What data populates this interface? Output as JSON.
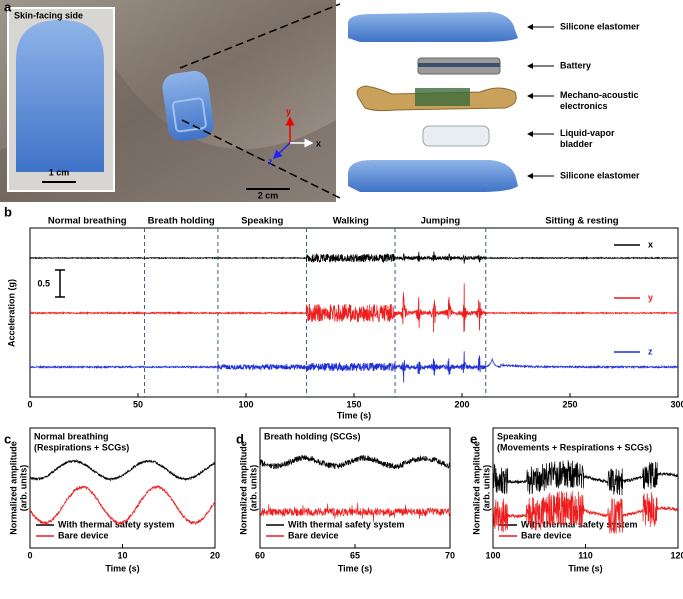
{
  "panel_a": {
    "label": "a",
    "inset_title": "Skin-facing side",
    "inset_scale": "1 cm",
    "photo_scale": "2 cm",
    "axes": [
      "x",
      "y",
      "z"
    ],
    "layers": [
      [
        "Silicone elastomer"
      ],
      [
        "Battery"
      ],
      [
        "Mechano-acoustic",
        "electronics"
      ],
      [
        "Liquid-vapor",
        "bladder"
      ],
      [
        "Silicone elastomer"
      ]
    ]
  },
  "panel_b": {
    "label": "b",
    "xlabel": "Time (s)",
    "ylabel": "Acceleration (g)",
    "xlim": [
      0,
      300
    ],
    "xticks": [
      0,
      50,
      100,
      150,
      200,
      250,
      300
    ],
    "activities": [
      "Normal breathing",
      "Breath holding",
      "Speaking",
      "Walking",
      "Jumping",
      "Sitting & resting"
    ],
    "boundaries": [
      53,
      87,
      128,
      169,
      211
    ],
    "scale_label": "0.5",
    "series": [
      {
        "name": "x",
        "color": "#000000"
      },
      {
        "name": "y",
        "color": "#ee1c1c"
      },
      {
        "name": "z",
        "color": "#1f2fd6"
      }
    ]
  },
  "panels_cde": [
    {
      "label": "c",
      "title": [
        "Normal breathing",
        "(Respirations + SCGs)"
      ],
      "ylabel": [
        "Normalized amplitude",
        "(arb. units)"
      ],
      "xlabel": "Time (s)",
      "xlim": [
        0,
        20
      ],
      "xticks": [
        0,
        10,
        20
      ],
      "legend": [
        "With thermal safety system",
        "Bare device"
      ],
      "colors": [
        "#000000",
        "#ee1c1c"
      ]
    },
    {
      "label": "d",
      "title": [
        "Breath holding (SCGs)"
      ],
      "ylabel": [
        "Normalized amplitude",
        "(arb. units)"
      ],
      "xlabel": "Time (s)",
      "xlim": [
        60,
        70
      ],
      "xticks": [
        60,
        65,
        70
      ],
      "legend": [
        "With thermal safety system",
        "Bare device"
      ],
      "colors": [
        "#000000",
        "#ee1c1c"
      ]
    },
    {
      "label": "e",
      "title": [
        "Speaking",
        "(Movements + Respirations + SCGs)"
      ],
      "ylabel": [
        "Normalized amplitude",
        "(arb. units)"
      ],
      "xlabel": "Time (s)",
      "xlim": [
        100,
        120
      ],
      "xticks": [
        100,
        110,
        120
      ],
      "legend": [
        "With thermal safety system",
        "Bare device"
      ],
      "colors": [
        "#000000",
        "#ee1c1c"
      ]
    }
  ]
}
